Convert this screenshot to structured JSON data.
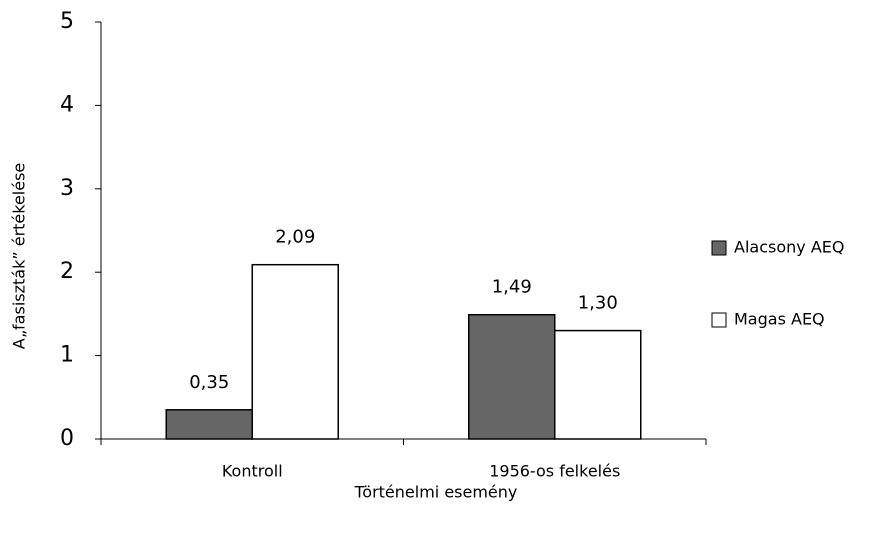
{
  "chart_data": {
    "type": "bar",
    "x_label": "Történelmi esemény",
    "y_label": "A„fasiszták” értékelése",
    "categories": [
      "Kontroll",
      "1956-os felkelés"
    ],
    "series": [
      {
        "name": "Alacsony AEQ",
        "color": "#666666",
        "values": [
          0.35,
          1.49
        ],
        "value_labels": [
          "0,35",
          "1,49"
        ]
      },
      {
        "name": "Magas AEQ",
        "color": "#ffffff",
        "values": [
          2.09,
          1.3
        ],
        "value_labels": [
          "2,09",
          "1,30"
        ]
      }
    ],
    "ylim": [
      0,
      5
    ],
    "yticks": [
      0,
      1,
      2,
      3,
      4,
      5
    ],
    "legend": "right"
  }
}
